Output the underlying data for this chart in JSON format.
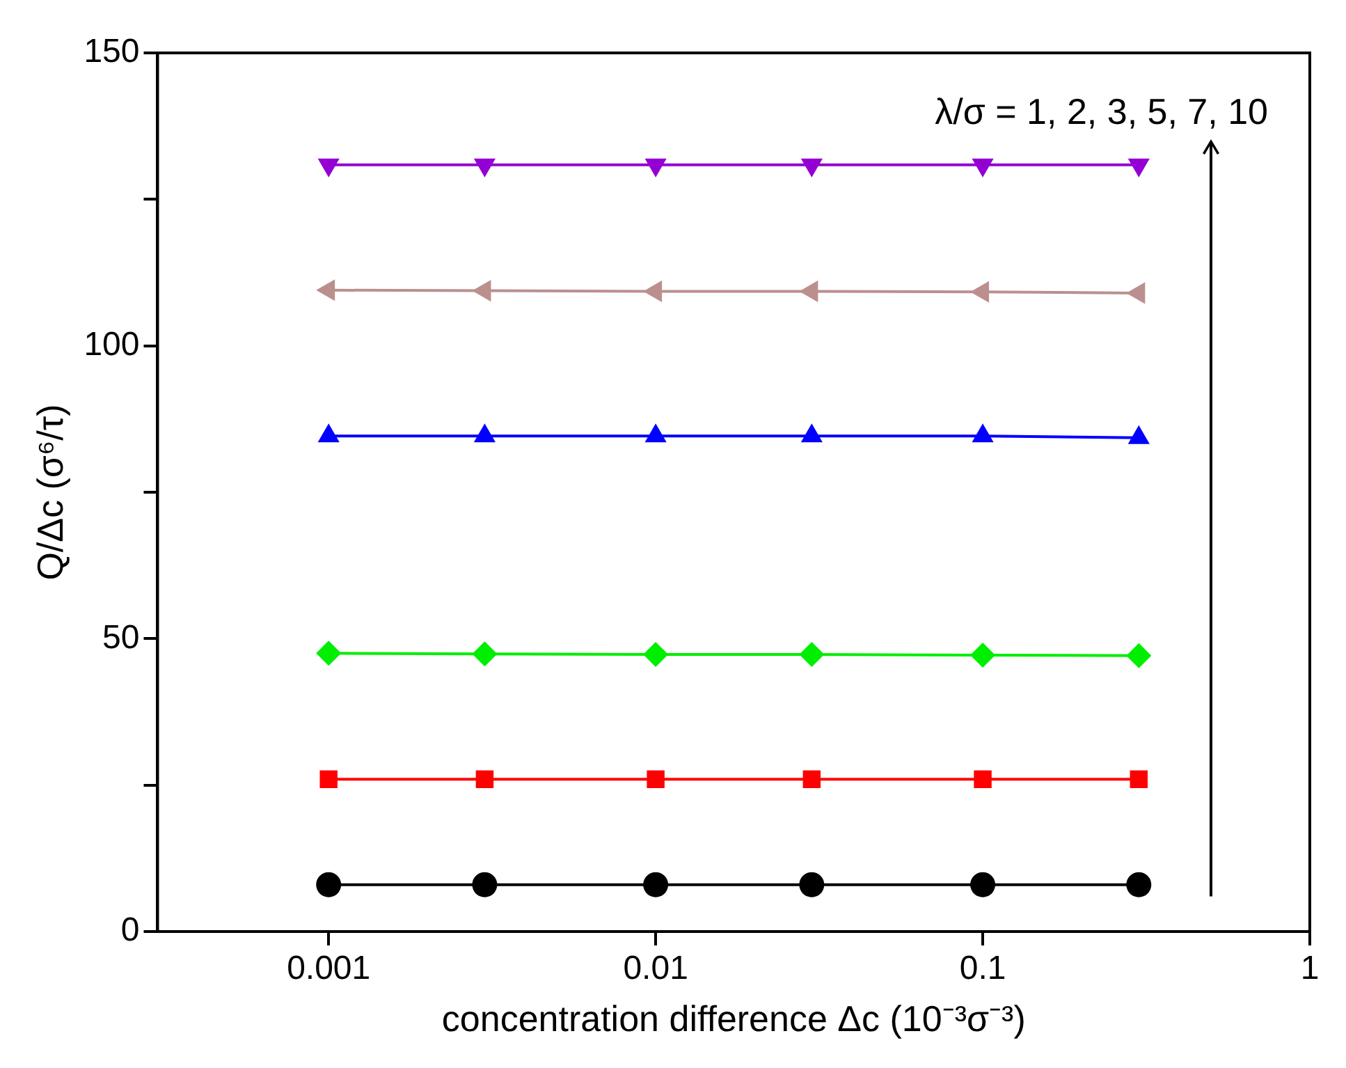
{
  "chart_data": {
    "type": "line",
    "xlabel": "concentration difference Δc (10⁻³σ⁻³)",
    "ylabel": "Q/Δc (σ⁶/τ)",
    "log": "x",
    "x": [
      0.001,
      0.003,
      0.01,
      0.03,
      0.1,
      0.3
    ],
    "xlim": [
      0.0003,
      1
    ],
    "xticks": [
      0.001,
      0.01,
      0.1,
      1
    ],
    "ylim": [
      0,
      150
    ],
    "yticks": [
      0,
      {
        "value": 25,
        "label": null
      },
      50,
      {
        "value": 75,
        "label": null
      },
      100,
      {
        "value": 125,
        "label": null
      },
      150
    ],
    "grid": false,
    "legend": false,
    "line_style": "solid",
    "annotations": [
      "λ/σ = 1, 2, 3, 5, 7, 10"
    ],
    "series": [
      {
        "color": "#000000",
        "marker": "circle",
        "values": [
          8.0,
          8.0,
          8.0,
          8.0,
          8.0,
          8.0
        ]
      },
      {
        "color": "#ff0000",
        "marker": "square",
        "values": [
          26.0,
          26.0,
          26.0,
          26.0,
          26.0,
          26.0
        ]
      },
      {
        "color": "#00ee00",
        "marker": "diamond",
        "values": [
          47.5,
          47.4,
          47.3,
          47.3,
          47.2,
          47.1
        ]
      },
      {
        "color": "#0000ff",
        "marker": "triangle",
        "values": [
          84.6,
          84.6,
          84.6,
          84.6,
          84.6,
          84.3
        ]
      },
      {
        "color": "#bc8f8f",
        "marker": "triangle-left",
        "values": [
          109.5,
          109.4,
          109.3,
          109.3,
          109.2,
          109.0
        ]
      },
      {
        "color": "#9400d3",
        "marker": "triangle-down",
        "values": [
          130.9,
          130.9,
          130.9,
          130.9,
          130.9,
          130.9
        ]
      }
    ]
  }
}
